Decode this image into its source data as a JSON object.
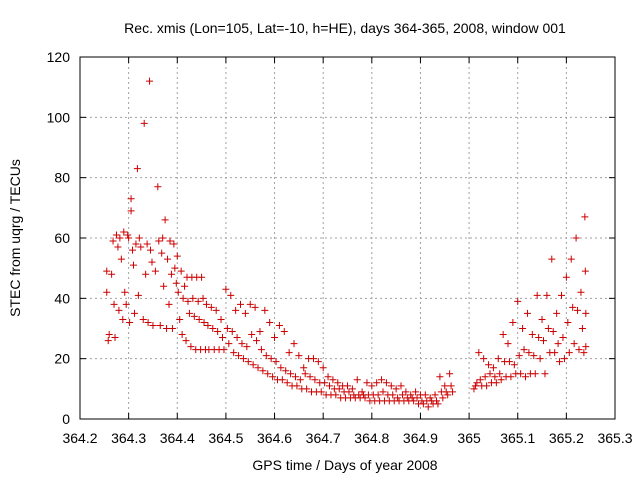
{
  "chart_data": {
    "type": "scatter",
    "title": "Rec. xmis (Lon=105, Lat=-10, h=HE), days 364-365, 2008, window 001",
    "xlabel": "GPS time / Days of year 2008",
    "ylabel": "STEC from uqrg / TECUs",
    "xlim": [
      364.2,
      365.3
    ],
    "ylim": [
      0,
      120
    ],
    "xticks": [
      "364.2",
      "364.3",
      "364.4",
      "364.5",
      "364.6",
      "364.7",
      "364.8",
      "364.9",
      "365",
      "365.1",
      "365.2",
      "365.3"
    ],
    "yticks": [
      "0",
      "20",
      "40",
      "60",
      "80",
      "100",
      "120"
    ],
    "grid": true,
    "marker": "plus",
    "color": "#cc0000",
    "points": [
      [
        364.255,
        42
      ],
      [
        364.255,
        49
      ],
      [
        364.258,
        26
      ],
      [
        364.26,
        28
      ],
      [
        364.265,
        48
      ],
      [
        364.268,
        59
      ],
      [
        364.27,
        38
      ],
      [
        364.272,
        27
      ],
      [
        364.275,
        61
      ],
      [
        364.278,
        57
      ],
      [
        364.28,
        36
      ],
      [
        364.282,
        60
      ],
      [
        364.285,
        53
      ],
      [
        364.288,
        33
      ],
      [
        364.29,
        62
      ],
      [
        364.292,
        42
      ],
      [
        364.295,
        38
      ],
      [
        364.298,
        61
      ],
      [
        364.3,
        60
      ],
      [
        364.302,
        32
      ],
      [
        364.305,
        73
      ],
      [
        364.305,
        69
      ],
      [
        364.308,
        56
      ],
      [
        364.31,
        51
      ],
      [
        364.312,
        35
      ],
      [
        364.315,
        58
      ],
      [
        364.318,
        83
      ],
      [
        364.32,
        41
      ],
      [
        364.322,
        60
      ],
      [
        364.325,
        57
      ],
      [
        364.33,
        33
      ],
      [
        364.332,
        98
      ],
      [
        364.335,
        48
      ],
      [
        364.338,
        58
      ],
      [
        364.34,
        32
      ],
      [
        364.343,
        112
      ],
      [
        364.345,
        56
      ],
      [
        364.348,
        52
      ],
      [
        364.35,
        31
      ],
      [
        364.355,
        49
      ],
      [
        364.36,
        77
      ],
      [
        364.362,
        59
      ],
      [
        364.365,
        31
      ],
      [
        364.368,
        55
      ],
      [
        364.37,
        60
      ],
      [
        364.372,
        44
      ],
      [
        364.375,
        66
      ],
      [
        364.378,
        30
      ],
      [
        364.38,
        53
      ],
      [
        364.383,
        38
      ],
      [
        364.385,
        59
      ],
      [
        364.388,
        48
      ],
      [
        364.39,
        30
      ],
      [
        364.393,
        58
      ],
      [
        364.395,
        50
      ],
      [
        364.398,
        45
      ],
      [
        364.4,
        54
      ],
      [
        364.402,
        42
      ],
      [
        364.405,
        33
      ],
      [
        364.408,
        49
      ],
      [
        364.41,
        28
      ],
      [
        364.412,
        40
      ],
      [
        364.415,
        44
      ],
      [
        364.418,
        26
      ],
      [
        364.42,
        47
      ],
      [
        364.422,
        39
      ],
      [
        364.425,
        35
      ],
      [
        364.428,
        24
      ],
      [
        364.43,
        47
      ],
      [
        364.432,
        40
      ],
      [
        364.435,
        34
      ],
      [
        364.438,
        23
      ],
      [
        364.44,
        47
      ],
      [
        364.443,
        39
      ],
      [
        364.445,
        33
      ],
      [
        364.448,
        23
      ],
      [
        364.45,
        47
      ],
      [
        364.453,
        40
      ],
      [
        364.455,
        32
      ],
      [
        364.458,
        23
      ],
      [
        364.46,
        38
      ],
      [
        364.463,
        31
      ],
      [
        364.465,
        23
      ],
      [
        364.47,
        37
      ],
      [
        364.473,
        30
      ],
      [
        364.476,
        23
      ],
      [
        364.48,
        36
      ],
      [
        364.483,
        29
      ],
      [
        364.486,
        23
      ],
      [
        364.49,
        33
      ],
      [
        364.493,
        27
      ],
      [
        364.496,
        23
      ],
      [
        364.5,
        43
      ],
      [
        364.503,
        30
      ],
      [
        364.506,
        25
      ],
      [
        364.51,
        41
      ],
      [
        364.513,
        29
      ],
      [
        364.516,
        22
      ],
      [
        364.52,
        36
      ],
      [
        364.523,
        27
      ],
      [
        364.526,
        21
      ],
      [
        364.53,
        38
      ],
      [
        364.533,
        25
      ],
      [
        364.536,
        20
      ],
      [
        364.54,
        35
      ],
      [
        364.543,
        24
      ],
      [
        364.546,
        19
      ],
      [
        364.55,
        38
      ],
      [
        364.553,
        28
      ],
      [
        364.556,
        18
      ],
      [
        364.56,
        37
      ],
      [
        364.563,
        26
      ],
      [
        364.566,
        17
      ],
      [
        364.57,
        29
      ],
      [
        364.573,
        23
      ],
      [
        364.576,
        16
      ],
      [
        364.58,
        36
      ],
      [
        364.583,
        21
      ],
      [
        364.586,
        15
      ],
      [
        364.59,
        32
      ],
      [
        364.593,
        20
      ],
      [
        364.596,
        14
      ],
      [
        364.6,
        27
      ],
      [
        364.603,
        19
      ],
      [
        364.606,
        13
      ],
      [
        364.61,
        31
      ],
      [
        364.613,
        17
      ],
      [
        364.616,
        13
      ],
      [
        364.62,
        29
      ],
      [
        364.623,
        16
      ],
      [
        364.626,
        12
      ],
      [
        364.63,
        22
      ],
      [
        364.633,
        15
      ],
      [
        364.636,
        11
      ],
      [
        364.64,
        25
      ],
      [
        364.643,
        14
      ],
      [
        364.646,
        11
      ],
      [
        364.65,
        21
      ],
      [
        364.653,
        13
      ],
      [
        364.656,
        10
      ],
      [
        364.66,
        17
      ],
      [
        364.663,
        15
      ],
      [
        364.666,
        10
      ],
      [
        364.67,
        20
      ],
      [
        364.673,
        14
      ],
      [
        364.676,
        9
      ],
      [
        364.68,
        20
      ],
      [
        364.683,
        13
      ],
      [
        364.686,
        9
      ],
      [
        364.69,
        19
      ],
      [
        364.693,
        12
      ],
      [
        364.696,
        9
      ],
      [
        364.7,
        17
      ],
      [
        364.703,
        12
      ],
      [
        364.706,
        8
      ],
      [
        364.71,
        14
      ],
      [
        364.713,
        11
      ],
      [
        364.716,
        8
      ],
      [
        364.72,
        13
      ],
      [
        364.723,
        10
      ],
      [
        364.726,
        8
      ],
      [
        364.73,
        12
      ],
      [
        364.733,
        10
      ],
      [
        364.736,
        7
      ],
      [
        364.74,
        11
      ],
      [
        364.743,
        9
      ],
      [
        364.746,
        7
      ],
      [
        364.75,
        11
      ],
      [
        364.753,
        9
      ],
      [
        364.756,
        7
      ],
      [
        364.76,
        10
      ],
      [
        364.763,
        8
      ],
      [
        364.766,
        7
      ],
      [
        364.77,
        13
      ],
      [
        364.773,
        8
      ],
      [
        364.776,
        7
      ],
      [
        364.78,
        9
      ],
      [
        364.783,
        8
      ],
      [
        364.786,
        7
      ],
      [
        364.79,
        12
      ],
      [
        364.793,
        8
      ],
      [
        364.796,
        6
      ],
      [
        364.8,
        11
      ],
      [
        364.803,
        8
      ],
      [
        364.806,
        6
      ],
      [
        364.81,
        12
      ],
      [
        364.813,
        8
      ],
      [
        364.816,
        6
      ],
      [
        364.82,
        13
      ],
      [
        364.823,
        9
      ],
      [
        364.826,
        6
      ],
      [
        364.83,
        12
      ],
      [
        364.833,
        8
      ],
      [
        364.836,
        6
      ],
      [
        364.84,
        11
      ],
      [
        364.843,
        8
      ],
      [
        364.846,
        6
      ],
      [
        364.85,
        10
      ],
      [
        364.853,
        7
      ],
      [
        364.856,
        6
      ],
      [
        364.86,
        11
      ],
      [
        364.863,
        8
      ],
      [
        364.866,
        6
      ],
      [
        364.87,
        9
      ],
      [
        364.873,
        7
      ],
      [
        364.876,
        6
      ],
      [
        364.88,
        8
      ],
      [
        364.883,
        7
      ],
      [
        364.886,
        6
      ],
      [
        364.89,
        9
      ],
      [
        364.893,
        7
      ],
      [
        364.896,
        5
      ],
      [
        364.9,
        8
      ],
      [
        364.903,
        6
      ],
      [
        364.906,
        5
      ],
      [
        364.91,
        8
      ],
      [
        364.913,
        6
      ],
      [
        364.916,
        4
      ],
      [
        364.92,
        7
      ],
      [
        364.923,
        6
      ],
      [
        364.926,
        5
      ],
      [
        364.93,
        8
      ],
      [
        364.933,
        6
      ],
      [
        364.936,
        5
      ],
      [
        364.94,
        14
      ],
      [
        364.943,
        9
      ],
      [
        364.946,
        7
      ],
      [
        364.95,
        11
      ],
      [
        364.953,
        9
      ],
      [
        364.956,
        8
      ],
      [
        364.96,
        15
      ],
      [
        364.963,
        11
      ],
      [
        364.966,
        9
      ],
      [
        365.01,
        10
      ],
      [
        365.013,
        11
      ],
      [
        365.016,
        12
      ],
      [
        365.02,
        22
      ],
      [
        365.023,
        13
      ],
      [
        365.026,
        11
      ],
      [
        365.03,
        20
      ],
      [
        365.033,
        14
      ],
      [
        365.036,
        11
      ],
      [
        365.04,
        18
      ],
      [
        365.043,
        15
      ],
      [
        365.046,
        12
      ],
      [
        365.05,
        17
      ],
      [
        365.053,
        14
      ],
      [
        365.056,
        12
      ],
      [
        365.06,
        20
      ],
      [
        365.063,
        15
      ],
      [
        365.066,
        13
      ],
      [
        365.07,
        28
      ],
      [
        365.073,
        19
      ],
      [
        365.076,
        14
      ],
      [
        365.08,
        25
      ],
      [
        365.083,
        19
      ],
      [
        365.086,
        14
      ],
      [
        365.09,
        32
      ],
      [
        365.093,
        18
      ],
      [
        365.096,
        15
      ],
      [
        365.1,
        39
      ],
      [
        365.103,
        21
      ],
      [
        365.106,
        15
      ],
      [
        365.11,
        30
      ],
      [
        365.113,
        23
      ],
      [
        365.116,
        14
      ],
      [
        365.12,
        35
      ],
      [
        365.123,
        22
      ],
      [
        365.126,
        15
      ],
      [
        365.13,
        28
      ],
      [
        365.133,
        21
      ],
      [
        365.136,
        15
      ],
      [
        365.14,
        41
      ],
      [
        365.143,
        27
      ],
      [
        365.146,
        20
      ],
      [
        365.15,
        33
      ],
      [
        365.153,
        26
      ],
      [
        365.156,
        15
      ],
      [
        365.16,
        41
      ],
      [
        365.163,
        30
      ],
      [
        365.166,
        22
      ],
      [
        365.17,
        53
      ],
      [
        365.173,
        29
      ],
      [
        365.176,
        22
      ],
      [
        365.18,
        35
      ],
      [
        365.183,
        25
      ],
      [
        365.186,
        19
      ],
      [
        365.19,
        41
      ],
      [
        365.193,
        27
      ],
      [
        365.196,
        20
      ],
      [
        365.2,
        47
      ],
      [
        365.203,
        32
      ],
      [
        365.206,
        22
      ],
      [
        365.21,
        53
      ],
      [
        365.213,
        37
      ],
      [
        365.216,
        25
      ],
      [
        365.22,
        60
      ],
      [
        365.223,
        36
      ],
      [
        365.226,
        23
      ],
      [
        365.23,
        42
      ],
      [
        365.233,
        30
      ],
      [
        365.236,
        22
      ],
      [
        365.238,
        67
      ],
      [
        365.239,
        49
      ],
      [
        365.24,
        35
      ],
      [
        365.24,
        24
      ]
    ]
  }
}
